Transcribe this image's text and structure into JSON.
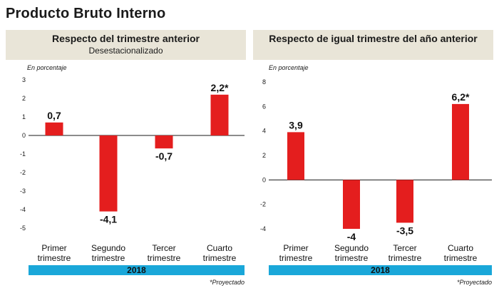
{
  "title": "Producto Bruto Interno",
  "colors": {
    "bar": "#e41e1e",
    "year_band": "#1aa7d9",
    "header_bg": "#e9e5d8"
  },
  "left": {
    "title": "Respecto del trimestre anterior",
    "subtitle": "Desestacionalizado",
    "unit": "En porcentaje",
    "year": "2018",
    "footnote": "*Proyectado"
  },
  "right": {
    "title": "Respecto de igual trimestre del año anterior",
    "unit": "En porcentaje",
    "year": "2018",
    "footnote": "*Proyectado"
  },
  "chart_data": [
    {
      "type": "bar",
      "title": "Respecto del trimestre anterior",
      "subtitle": "Desestacionalizado",
      "ylabel": "En porcentaje",
      "categories": [
        [
          "Primer",
          "trimestre"
        ],
        [
          "Segundo",
          "trimestre"
        ],
        [
          "Tercer",
          "trimestre"
        ],
        [
          "Cuarto",
          "trimestre"
        ]
      ],
      "values": [
        0.7,
        -4.1,
        -0.7,
        2.2
      ],
      "value_labels": [
        "0,7",
        "-4,1",
        "-0,7",
        "2,2*"
      ],
      "yticks": [
        3,
        2,
        1,
        0,
        -1,
        -2,
        -3,
        -4,
        -5
      ],
      "ytick_labels": [
        "3",
        "2",
        "1",
        "0",
        "-1",
        "-2",
        "-3",
        "-4",
        "-5"
      ],
      "ylim": [
        -5,
        3
      ],
      "grid": false,
      "x_group_label": "2018"
    },
    {
      "type": "bar",
      "title": "Respecto de igual trimestre del año anterior",
      "ylabel": "En porcentaje",
      "categories": [
        [
          "Primer",
          "trimestre"
        ],
        [
          "Segundo",
          "trimestre"
        ],
        [
          "Tercer",
          "trimestre"
        ],
        [
          "Cuarto",
          "trimestre"
        ]
      ],
      "values": [
        3.9,
        -4,
        -3.5,
        6.2
      ],
      "value_labels": [
        "3,9",
        "-4",
        "-3,5",
        "6,2*"
      ],
      "yticks": [
        8,
        6,
        4,
        2,
        0,
        -2,
        -4
      ],
      "ytick_labels": [
        "8",
        "6",
        "4",
        "2",
        "0",
        "-2",
        "-4"
      ],
      "ylim": [
        -4,
        8
      ],
      "grid": false,
      "x_group_label": "2018"
    }
  ]
}
